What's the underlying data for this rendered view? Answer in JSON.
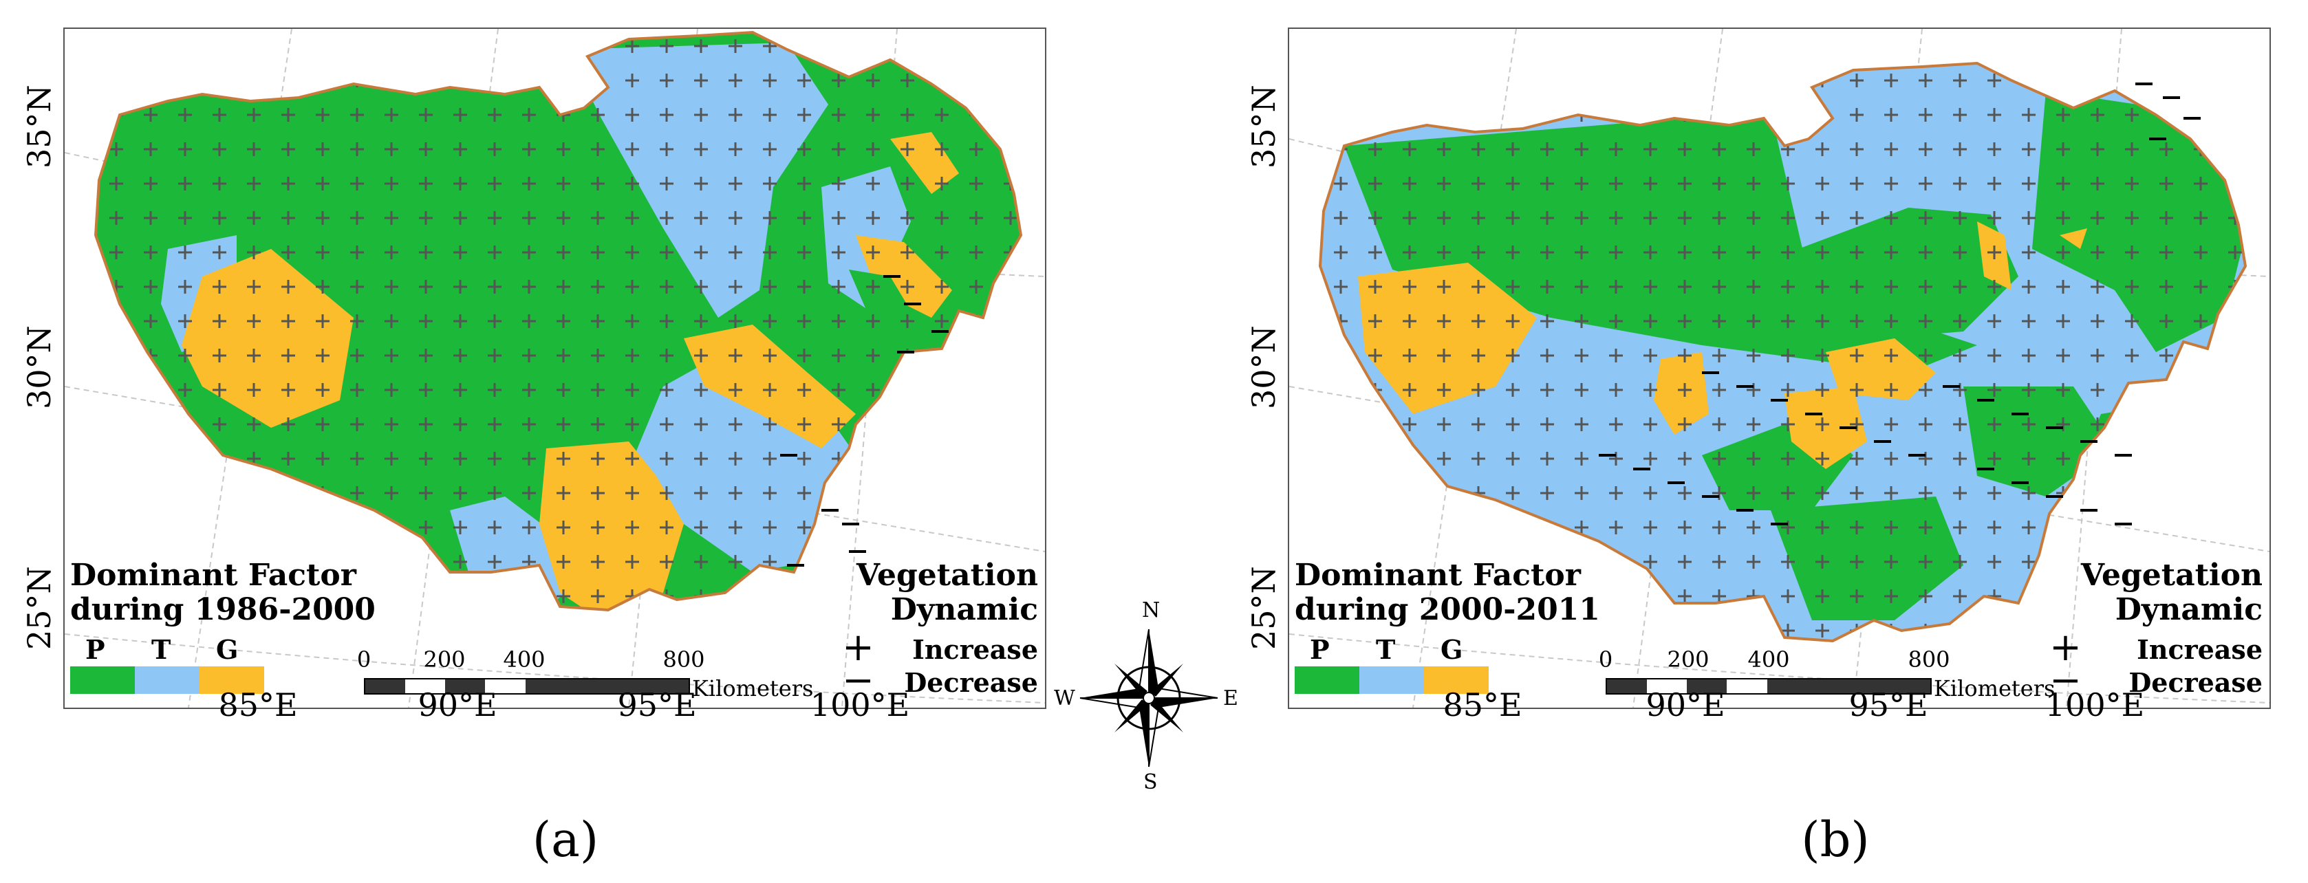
{
  "colors": {
    "P": "#1bb83a",
    "T": "#8ec6f5",
    "G": "#fbbd2c",
    "boundary": "#c87a3a",
    "graticule": "#c8c8c8"
  },
  "axes": {
    "lat_labels": [
      "35°N",
      "30°N",
      "25°N"
    ],
    "lon_labels": [
      "85°E",
      "90°E",
      "95°E",
      "100°E"
    ]
  },
  "panels": [
    {
      "caption": "(a)",
      "legend_title_line1": "Dominant Factor",
      "legend_title_line2": "during 1986-2000",
      "legend_keys": [
        "P",
        "T",
        "G"
      ]
    },
    {
      "caption": "(b)",
      "legend_title_line1": "Dominant Factor",
      "legend_title_line2": "during 2000-2011",
      "legend_keys": [
        "P",
        "T",
        "G"
      ]
    }
  ],
  "scale": {
    "ticks": [
      "0",
      "200",
      "400",
      "800"
    ],
    "unit": "Kilometers"
  },
  "vegetation": {
    "title_line1": "Vegetation",
    "title_line2": "Dynamic",
    "increase_symbol": "+",
    "increase_label": "Increase",
    "decrease_symbol": "−",
    "decrease_label": "Decrease"
  },
  "compass": {
    "north": "N",
    "south": "S",
    "east": "E",
    "west": "W",
    "icon": "compass-rose-icon"
  }
}
